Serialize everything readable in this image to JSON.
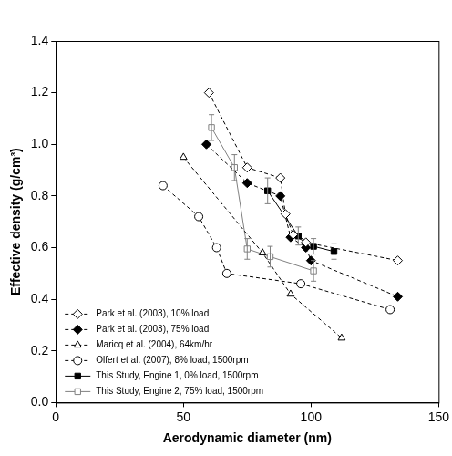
{
  "chart_data": {
    "type": "line",
    "x_label": "Aerodynamic diameter (nm)",
    "y_label": "Effective density (g/cm³)",
    "xlim": [
      0,
      150
    ],
    "xticks": [
      0,
      50,
      100,
      150
    ],
    "ylim": [
      0,
      1.4
    ],
    "yticks": [
      {
        "value": 0,
        "label": "0.0"
      },
      {
        "value": 0.2,
        "label": "0.2"
      },
      {
        "value": 0.4,
        "label": "0.4"
      },
      {
        "value": 0.6,
        "label": "0.6"
      },
      {
        "value": 0.8,
        "label": "0.8"
      },
      {
        "value": 1.0,
        "label": "1.0"
      },
      {
        "value": 1.2,
        "label": "1.2"
      },
      {
        "value": 1.4,
        "label": "1.4"
      }
    ],
    "grid": false,
    "legend": "lower left",
    "series": [
      {
        "name": "Park et al. (2003), 10% load",
        "color": "#000000",
        "marker": "diamond_open",
        "line_style": "dashed",
        "x": [
          60,
          75,
          88,
          90,
          93,
          98,
          134
        ],
        "values": [
          1.2,
          0.91,
          0.87,
          0.73,
          0.65,
          0.62,
          0.55
        ]
      },
      {
        "name": "Park et al. (2003), 75% load",
        "color": "#000000",
        "marker": "diamond",
        "line_style": "dashed",
        "x": [
          59,
          75,
          88,
          92,
          98,
          100,
          134
        ],
        "values": [
          1.0,
          0.85,
          0.8,
          0.64,
          0.6,
          0.55,
          0.41
        ]
      },
      {
        "name": "Maricq et al. (2004), 64km/hr",
        "color": "#000000",
        "marker": "triangle_open",
        "line_style": "dashed",
        "x": [
          50,
          81,
          92,
          112
        ],
        "values": [
          0.95,
          0.58,
          0.42,
          0.25
        ]
      },
      {
        "name": "Olfert et al. (2007), 8% load, 1500rpm",
        "color": "#000000",
        "marker": "circle_open",
        "line_style": "dashed",
        "x": [
          42,
          56,
          63,
          67,
          96,
          131
        ],
        "values": [
          0.84,
          0.72,
          0.6,
          0.5,
          0.46,
          0.36
        ]
      },
      {
        "name": "This Study, Engine 1, 0% load, 1500rpm",
        "color": "#000000",
        "marker": "square",
        "line_style": "solid",
        "x": [
          83,
          95,
          101,
          109
        ],
        "values": [
          0.82,
          0.645,
          0.605,
          0.585
        ],
        "errors": [
          0.05,
          0.035,
          0.03,
          0.03
        ]
      },
      {
        "name": "This Study, Engine 2, 75% load, 1500rpm",
        "color": "#808080",
        "marker": "square_open",
        "line_style": "solid",
        "x": [
          61,
          70,
          75,
          84,
          101
        ],
        "values": [
          1.065,
          0.91,
          0.595,
          0.565,
          0.51
        ],
        "errors": [
          0.05,
          0.05,
          0.04,
          0.04,
          0.04
        ]
      }
    ]
  }
}
